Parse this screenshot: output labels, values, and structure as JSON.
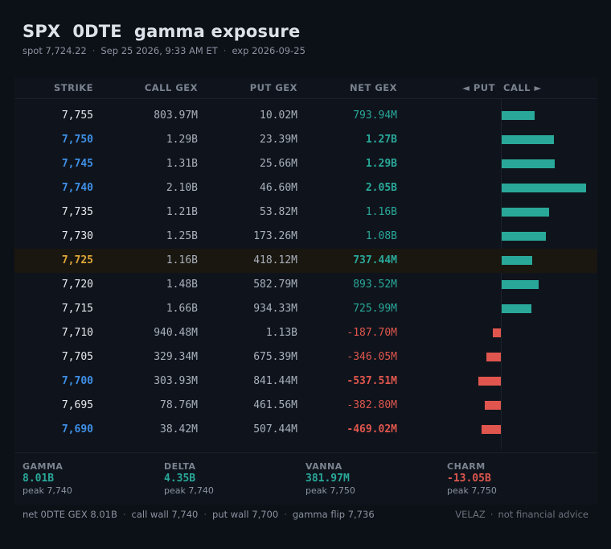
{
  "header": {
    "title": "SPX  0DTE  gamma exposure",
    "spot": "spot 7,724.22",
    "time": "Sep 25 2026, 9:33 AM ET",
    "expiry": "exp 2026-09-25"
  },
  "columns": {
    "strike": "STRIKE",
    "call": "CALL GEX",
    "put": "PUT GEX",
    "net": "NET GEX",
    "put_side": "◄ PUT",
    "call_side": "CALL ►"
  },
  "colors": {
    "positive": "#29a89a",
    "negative": "#e0564e",
    "strike_marked": "#3f8fe6",
    "spot_strike": "#e0a73a"
  },
  "chart_data": {
    "type": "bar",
    "orientation": "horizontal",
    "unit": "USD gamma exposure (millions)",
    "categories": [
      "7,755",
      "7,750",
      "7,745",
      "7,740",
      "7,735",
      "7,730",
      "7,725",
      "7,720",
      "7,715",
      "7,710",
      "7,705",
      "7,700",
      "7,695",
      "7,690"
    ],
    "rows": [
      {
        "strike": "7,755",
        "call": "803.97M",
        "put": "10.02M",
        "net": "793.94M",
        "net_value": 793.94,
        "mark": false
      },
      {
        "strike": "7,750",
        "call": "1.29B",
        "put": "23.39M",
        "net": "1.27B",
        "net_value": 1270,
        "mark": true
      },
      {
        "strike": "7,745",
        "call": "1.31B",
        "put": "25.66M",
        "net": "1.29B",
        "net_value": 1290,
        "mark": true
      },
      {
        "strike": "7,740",
        "call": "2.10B",
        "put": "46.60M",
        "net": "2.05B",
        "net_value": 2050,
        "mark": true
      },
      {
        "strike": "7,735",
        "call": "1.21B",
        "put": "53.82M",
        "net": "1.16B",
        "net_value": 1160,
        "mark": false
      },
      {
        "strike": "7,730",
        "call": "1.25B",
        "put": "173.26M",
        "net": "1.08B",
        "net_value": 1080,
        "mark": false
      },
      {
        "strike": "7,725",
        "call": "1.16B",
        "put": "418.12M",
        "net": "737.44M",
        "net_value": 737.44,
        "mark": false,
        "spot": true
      },
      {
        "strike": "7,720",
        "call": "1.48B",
        "put": "582.79M",
        "net": "893.52M",
        "net_value": 893.52,
        "mark": false
      },
      {
        "strike": "7,715",
        "call": "1.66B",
        "put": "934.33M",
        "net": "725.99M",
        "net_value": 725.99,
        "mark": false
      },
      {
        "strike": "7,710",
        "call": "940.48M",
        "put": "1.13B",
        "net": "-187.70M",
        "net_value": -187.7,
        "mark": false
      },
      {
        "strike": "7,705",
        "call": "329.34M",
        "put": "675.39M",
        "net": "-346.05M",
        "net_value": -346.05,
        "mark": false
      },
      {
        "strike": "7,700",
        "call": "303.93M",
        "put": "841.44M",
        "net": "-537.51M",
        "net_value": -537.51,
        "mark": true
      },
      {
        "strike": "7,695",
        "call": "78.76M",
        "put": "461.56M",
        "net": "-382.80M",
        "net_value": -382.8,
        "mark": false
      },
      {
        "strike": "7,690",
        "call": "38.42M",
        "put": "507.44M",
        "net": "-469.02M",
        "net_value": -469.02,
        "mark": true
      }
    ]
  },
  "stats": [
    {
      "label": "GAMMA",
      "value": "8.01B",
      "peak": "peak 7,740",
      "color": "#29a89a"
    },
    {
      "label": "DELTA",
      "value": "4.35B",
      "peak": "peak 7,740",
      "color": "#29a89a"
    },
    {
      "label": "VANNA",
      "value": "381.97M",
      "peak": "peak 7,750",
      "color": "#29a89a"
    },
    {
      "label": "CHARM",
      "value": "-13.05B",
      "peak": "peak 7,750",
      "color": "#e0564e"
    }
  ],
  "footer": {
    "net_gex": "net 0DTE GEX  8.01B",
    "call_wall": "call wall  7,740",
    "put_wall": "put wall  7,700",
    "gamma_flip": "gamma flip  7,736",
    "brand": "VELAZ",
    "disclaimer": "not financial advice"
  }
}
